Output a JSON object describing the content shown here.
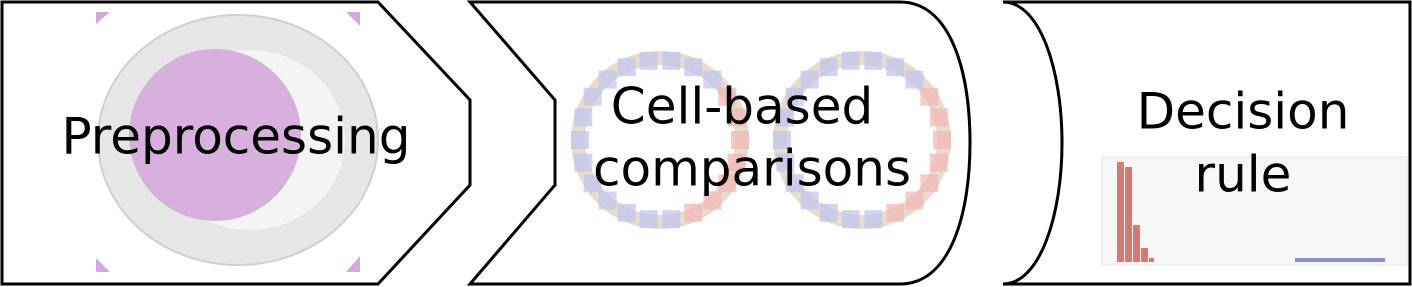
{
  "steps": [
    {
      "lines": [
        "Preprocessing"
      ]
    },
    {
      "lines": [
        "Cell-based",
        "comparisons"
      ]
    },
    {
      "lines": [
        "Decision",
        "rule"
      ]
    }
  ]
}
